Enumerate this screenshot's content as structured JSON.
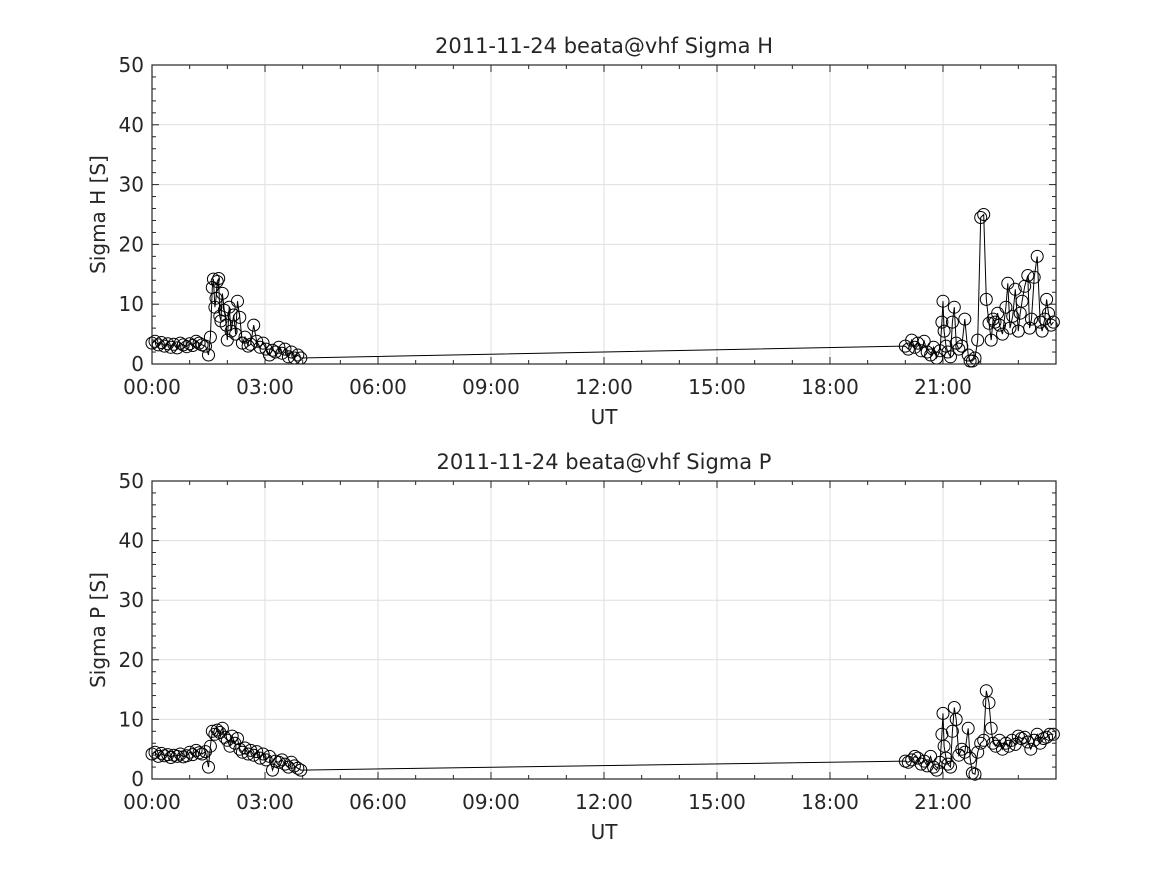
{
  "chart_data": [
    {
      "type": "line",
      "title": "2011-11-24  beata@vhf Sigma H",
      "xlabel": "UT",
      "ylabel": "Sigma H [S]",
      "xlim": [
        0,
        24
      ],
      "ylim": [
        0,
        50
      ],
      "xtick_labels": [
        "00:00",
        "03:00",
        "06:00",
        "09:00",
        "12:00",
        "15:00",
        "18:00",
        "21:00"
      ],
      "xtick_values": [
        0,
        3,
        6,
        9,
        12,
        15,
        18,
        21
      ],
      "ytick_labels": [
        "0",
        "10",
        "20",
        "30",
        "40",
        "50"
      ],
      "ytick_values": [
        0,
        10,
        20,
        30,
        40,
        50
      ],
      "grid": true,
      "marker": "open-circle",
      "series": [
        {
          "x": [
            0.0,
            0.08,
            0.17,
            0.25,
            0.33,
            0.42,
            0.5,
            0.58,
            0.67,
            0.75,
            0.83,
            0.92,
            1.0,
            1.08,
            1.17,
            1.25,
            1.33,
            1.42,
            1.5,
            1.55,
            1.6,
            1.63,
            1.67,
            1.7,
            1.73,
            1.77,
            1.8,
            1.83,
            1.87,
            1.92,
            1.97,
            2.0,
            2.05,
            2.1,
            2.17,
            2.22,
            2.27,
            2.33,
            2.4,
            2.47,
            2.55,
            2.62,
            2.7,
            2.78,
            2.87,
            2.95,
            3.03,
            3.12,
            3.2,
            3.28,
            3.37,
            3.45,
            3.53,
            3.62,
            3.7,
            3.78,
            3.87,
            3.95,
            20.0,
            20.08,
            20.17,
            20.25,
            20.33,
            20.42,
            20.5,
            20.58,
            20.67,
            20.75,
            20.83,
            20.92,
            20.97,
            21.0,
            21.03,
            21.08,
            21.13,
            21.2,
            21.25,
            21.3,
            21.35,
            21.42,
            21.5,
            21.58,
            21.67,
            21.72,
            21.78,
            21.85,
            21.92,
            22.0,
            22.08,
            22.15,
            22.22,
            22.28,
            22.33,
            22.38,
            22.45,
            22.5,
            22.58,
            22.67,
            22.72,
            22.78,
            22.85,
            22.92,
            23.0,
            23.05,
            23.1,
            23.17,
            23.25,
            23.3,
            23.35,
            23.42,
            23.5,
            23.58,
            23.63,
            23.7,
            23.75,
            23.8,
            23.87,
            23.93
          ],
          "y": [
            3.5,
            3.8,
            3.2,
            3.6,
            3.0,
            3.4,
            2.8,
            3.3,
            2.7,
            3.5,
            3.2,
            2.9,
            3.4,
            3.1,
            3.8,
            3.5,
            3.2,
            3.0,
            1.5,
            4.5,
            12.8,
            14.2,
            9.5,
            11.0,
            13.8,
            14.3,
            8.0,
            7.2,
            11.8,
            9.0,
            6.5,
            4.0,
            9.5,
            5.5,
            8.2,
            5.0,
            10.5,
            7.8,
            3.5,
            4.5,
            3.0,
            3.3,
            6.5,
            3.8,
            2.8,
            3.5,
            2.5,
            1.5,
            2.3,
            2.0,
            2.8,
            1.8,
            2.5,
            1.2,
            2.0,
            1.0,
            1.5,
            1.0,
            3.0,
            2.5,
            4.0,
            2.8,
            3.5,
            2.2,
            3.8,
            2.0,
            1.5,
            2.8,
            1.0,
            2.2,
            7.0,
            10.5,
            5.5,
            3.0,
            2.0,
            1.2,
            7.0,
            9.5,
            3.5,
            2.5,
            3.0,
            7.5,
            1.5,
            0.5,
            0.5,
            1.0,
            4.0,
            24.5,
            25.0,
            10.8,
            6.8,
            4.0,
            7.5,
            7.0,
            8.5,
            6.5,
            5.0,
            9.5,
            13.5,
            6.0,
            8.0,
            12.5,
            5.5,
            8.5,
            10.5,
            13.0,
            14.8,
            6.0,
            7.5,
            14.5,
            18.0,
            7.0,
            5.5,
            7.5,
            10.8,
            8.5,
            6.5,
            7.0
          ]
        }
      ]
    },
    {
      "type": "line",
      "title": "2011-11-24  beata@vhf Sigma P",
      "xlabel": "UT",
      "ylabel": "Sigma P [S]",
      "xlim": [
        0,
        24
      ],
      "ylim": [
        0,
        50
      ],
      "xtick_labels": [
        "00:00",
        "03:00",
        "06:00",
        "09:00",
        "12:00",
        "15:00",
        "18:00",
        "21:00"
      ],
      "xtick_values": [
        0,
        3,
        6,
        9,
        12,
        15,
        18,
        21
      ],
      "ytick_labels": [
        "0",
        "10",
        "20",
        "30",
        "40",
        "50"
      ],
      "ytick_values": [
        0,
        10,
        20,
        30,
        40,
        50
      ],
      "grid": true,
      "marker": "open-circle",
      "series": [
        {
          "x": [
            0.0,
            0.08,
            0.17,
            0.25,
            0.33,
            0.42,
            0.5,
            0.58,
            0.67,
            0.75,
            0.83,
            0.92,
            1.0,
            1.08,
            1.17,
            1.25,
            1.33,
            1.42,
            1.5,
            1.55,
            1.6,
            1.67,
            1.73,
            1.8,
            1.87,
            1.93,
            2.0,
            2.07,
            2.13,
            2.2,
            2.27,
            2.33,
            2.4,
            2.47,
            2.55,
            2.62,
            2.7,
            2.78,
            2.87,
            2.95,
            3.03,
            3.12,
            3.2,
            3.28,
            3.37,
            3.45,
            3.53,
            3.62,
            3.7,
            3.78,
            3.87,
            3.95,
            20.0,
            20.08,
            20.17,
            20.25,
            20.33,
            20.42,
            20.5,
            20.58,
            20.67,
            20.75,
            20.83,
            20.92,
            20.97,
            21.0,
            21.03,
            21.08,
            21.13,
            21.2,
            21.25,
            21.3,
            21.35,
            21.42,
            21.5,
            21.58,
            21.67,
            21.72,
            21.78,
            21.85,
            21.92,
            22.0,
            22.08,
            22.15,
            22.22,
            22.28,
            22.33,
            22.4,
            22.5,
            22.58,
            22.67,
            22.75,
            22.83,
            22.92,
            23.0,
            23.08,
            23.17,
            23.25,
            23.33,
            23.42,
            23.5,
            23.58,
            23.67,
            23.75,
            23.83,
            23.93
          ],
          "y": [
            4.2,
            4.5,
            3.8,
            4.3,
            3.9,
            4.1,
            3.6,
            4.0,
            3.8,
            4.2,
            3.7,
            3.9,
            4.5,
            4.1,
            4.8,
            4.4,
            4.2,
            4.6,
            2.0,
            5.5,
            8.0,
            7.5,
            8.2,
            7.8,
            8.5,
            7.0,
            6.5,
            5.5,
            7.2,
            6.0,
            6.8,
            5.0,
            4.5,
            5.2,
            4.2,
            4.8,
            4.0,
            4.6,
            3.5,
            4.2,
            3.2,
            3.8,
            1.5,
            3.0,
            2.8,
            3.2,
            2.5,
            2.0,
            2.8,
            2.2,
            1.8,
            1.5,
            3.0,
            2.8,
            3.2,
            3.8,
            3.5,
            2.5,
            3.0,
            2.2,
            3.8,
            2.0,
            1.5,
            2.8,
            7.5,
            11.0,
            5.5,
            3.5,
            2.5,
            2.0,
            8.0,
            12.0,
            10.0,
            4.0,
            5.0,
            4.5,
            8.5,
            3.5,
            1.0,
            0.8,
            4.5,
            6.0,
            6.5,
            14.8,
            12.8,
            8.5,
            6.0,
            5.5,
            6.5,
            5.0,
            6.0,
            5.5,
            6.5,
            5.8,
            7.2,
            6.8,
            7.0,
            6.2,
            5.0,
            6.5,
            7.5,
            6.0,
            6.8,
            7.0,
            7.5,
            7.5
          ]
        }
      ]
    }
  ]
}
